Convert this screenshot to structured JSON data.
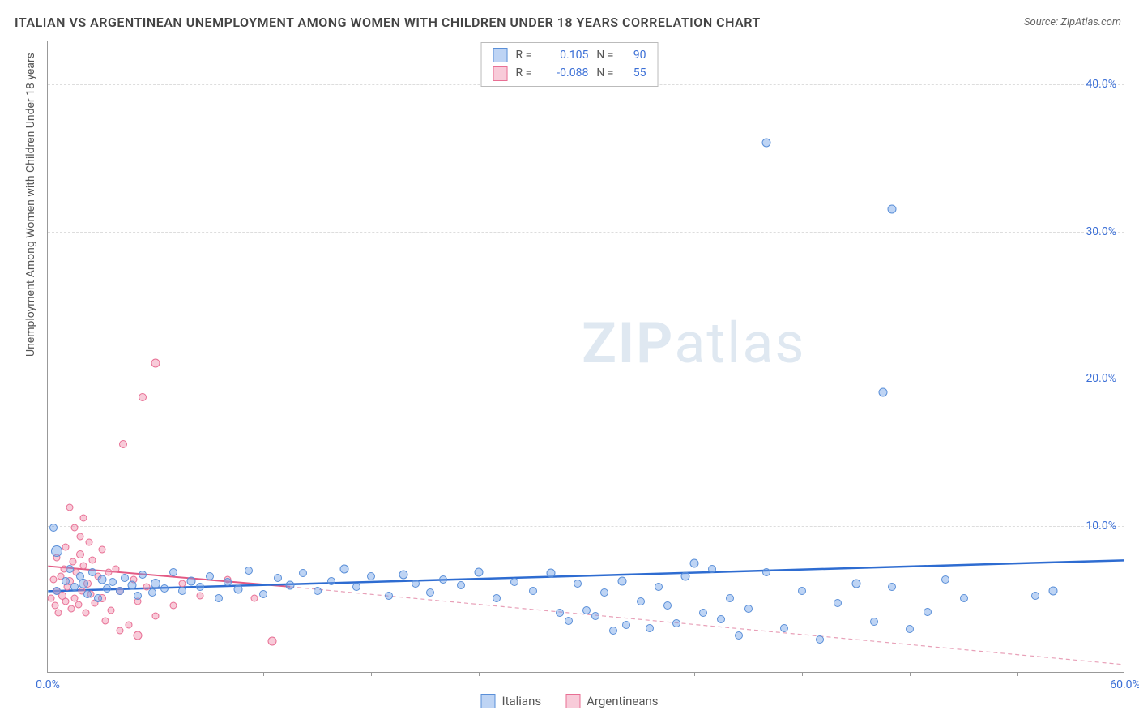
{
  "title": "ITALIAN VS ARGENTINEAN UNEMPLOYMENT AMONG WOMEN WITH CHILDREN UNDER 18 YEARS CORRELATION CHART",
  "source": "Source: ZipAtlas.com",
  "y_axis_label": "Unemployment Among Women with Children Under 18 years",
  "watermark_bold": "ZIP",
  "watermark_light": "atlas",
  "chart": {
    "type": "scatter",
    "xlim": [
      0,
      60
    ],
    "ylim": [
      0,
      43
    ],
    "x_ticks": [
      0,
      60
    ],
    "x_tick_labels": [
      "0.0%",
      "60.0%"
    ],
    "x_minor_ticks": [
      6,
      12,
      18,
      24,
      30,
      36,
      42,
      48,
      54
    ],
    "y_ticks": [
      10,
      20,
      30,
      40
    ],
    "y_tick_labels": [
      "10.0%",
      "20.0%",
      "30.0%",
      "40.0%"
    ],
    "grid_color": "#dddddd",
    "axis_color": "#999999",
    "background_color": "#ffffff"
  },
  "series": {
    "italians": {
      "label": "Italians",
      "fill": "rgba(110, 160, 230, 0.45)",
      "stroke": "#5a8fd8",
      "trend_color": "#2e6cd1",
      "trend_width": 2.5,
      "trend_dash": "none",
      "r_label": "R =",
      "r_value": "0.105",
      "n_label": "N =",
      "n_value": "90",
      "trend": {
        "x1": 0,
        "y1": 5.5,
        "x2": 60,
        "y2": 7.6
      },
      "points": [
        [
          0.3,
          9.8,
          10
        ],
        [
          0.5,
          8.2,
          14
        ],
        [
          0.5,
          5.5,
          10
        ],
        [
          1.0,
          6.2,
          10
        ],
        [
          1.2,
          7.0,
          10
        ],
        [
          1.5,
          5.8,
          10
        ],
        [
          1.8,
          6.5,
          10
        ],
        [
          2.0,
          6.0,
          12
        ],
        [
          2.2,
          5.3,
          10
        ],
        [
          2.5,
          6.8,
          10
        ],
        [
          2.8,
          5.0,
          10
        ],
        [
          3.0,
          6.3,
          11
        ],
        [
          3.3,
          5.7,
          10
        ],
        [
          3.6,
          6.1,
          10
        ],
        [
          4.0,
          5.5,
          10
        ],
        [
          4.3,
          6.4,
          10
        ],
        [
          4.7,
          5.9,
          11
        ],
        [
          5.0,
          5.2,
          10
        ],
        [
          5.3,
          6.6,
          10
        ],
        [
          5.8,
          5.4,
          10
        ],
        [
          6.0,
          6.0,
          12
        ],
        [
          6.5,
          5.7,
          10
        ],
        [
          7.0,
          6.8,
          10
        ],
        [
          7.5,
          5.5,
          10
        ],
        [
          8.0,
          6.2,
          11
        ],
        [
          8.5,
          5.8,
          10
        ],
        [
          9.0,
          6.5,
          10
        ],
        [
          9.5,
          5.0,
          10
        ],
        [
          10.0,
          6.1,
          10
        ],
        [
          10.6,
          5.6,
          11
        ],
        [
          11.2,
          6.9,
          10
        ],
        [
          12.0,
          5.3,
          10
        ],
        [
          12.8,
          6.4,
          10
        ],
        [
          13.5,
          5.9,
          11
        ],
        [
          14.2,
          6.7,
          10
        ],
        [
          15.0,
          5.5,
          10
        ],
        [
          15.8,
          6.2,
          10
        ],
        [
          16.5,
          7.0,
          11
        ],
        [
          17.2,
          5.8,
          10
        ],
        [
          18.0,
          6.5,
          10
        ],
        [
          19.0,
          5.2,
          10
        ],
        [
          19.8,
          6.6,
          11
        ],
        [
          20.5,
          6.0,
          10
        ],
        [
          21.3,
          5.4,
          10
        ],
        [
          22.0,
          6.3,
          10
        ],
        [
          23.0,
          5.9,
          10
        ],
        [
          24.0,
          6.8,
          11
        ],
        [
          25.0,
          5.0,
          10
        ],
        [
          26.0,
          6.1,
          10
        ],
        [
          27.0,
          5.5,
          10
        ],
        [
          28.0,
          6.7,
          11
        ],
        [
          28.5,
          4.0,
          10
        ],
        [
          29.0,
          3.5,
          10
        ],
        [
          29.5,
          6.0,
          10
        ],
        [
          30.0,
          4.2,
          10
        ],
        [
          30.5,
          3.8,
          10
        ],
        [
          31.0,
          5.4,
          10
        ],
        [
          31.5,
          2.8,
          10
        ],
        [
          32.0,
          6.2,
          11
        ],
        [
          32.2,
          3.2,
          10
        ],
        [
          33.0,
          4.8,
          10
        ],
        [
          33.5,
          3.0,
          10
        ],
        [
          34.0,
          5.8,
          10
        ],
        [
          34.5,
          4.5,
          10
        ],
        [
          35.0,
          3.3,
          10
        ],
        [
          35.5,
          6.5,
          11
        ],
        [
          36.0,
          7.4,
          11
        ],
        [
          36.5,
          4.0,
          10
        ],
        [
          37.0,
          7.0,
          10
        ],
        [
          37.5,
          3.6,
          10
        ],
        [
          38.0,
          5.0,
          10
        ],
        [
          38.5,
          2.5,
          10
        ],
        [
          39.0,
          4.3,
          10
        ],
        [
          40.0,
          6.8,
          10
        ],
        [
          40.0,
          36.0,
          11
        ],
        [
          41.0,
          3.0,
          10
        ],
        [
          42.0,
          5.5,
          10
        ],
        [
          43.0,
          2.2,
          10
        ],
        [
          44.0,
          4.7,
          10
        ],
        [
          45.0,
          6.0,
          11
        ],
        [
          46.0,
          3.4,
          10
        ],
        [
          46.5,
          19.0,
          11
        ],
        [
          47.0,
          5.8,
          10
        ],
        [
          47.0,
          31.5,
          11
        ],
        [
          48.0,
          2.9,
          10
        ],
        [
          49.0,
          4.1,
          10
        ],
        [
          50.0,
          6.3,
          10
        ],
        [
          51.0,
          5.0,
          10
        ],
        [
          55.0,
          5.2,
          10
        ],
        [
          56.0,
          5.5,
          11
        ]
      ]
    },
    "argentineans": {
      "label": "Argentineans",
      "fill": "rgba(240, 140, 170, 0.45)",
      "stroke": "#e86f94",
      "trend_color": "#e35a84",
      "trend_solid_width": 2,
      "trend_dash_color": "#e8a0b8",
      "trend_dash": "5,4",
      "r_label": "R =",
      "r_value": "-0.088",
      "n_label": "N =",
      "n_value": "55",
      "trend_solid": {
        "x1": 0,
        "y1": 7.2,
        "x2": 13.5,
        "y2": 5.8
      },
      "trend_dashed": {
        "x1": 13.5,
        "y1": 5.8,
        "x2": 60,
        "y2": 0.5
      },
      "points": [
        [
          0.2,
          5.0,
          9
        ],
        [
          0.3,
          6.3,
          9
        ],
        [
          0.4,
          4.5,
          9
        ],
        [
          0.5,
          7.8,
          9
        ],
        [
          0.5,
          5.5,
          9
        ],
        [
          0.6,
          4.0,
          9
        ],
        [
          0.7,
          6.5,
          9
        ],
        [
          0.8,
          5.2,
          10
        ],
        [
          0.9,
          7.0,
          9
        ],
        [
          1.0,
          4.8,
          9
        ],
        [
          1.0,
          8.5,
          9
        ],
        [
          1.1,
          5.8,
          9
        ],
        [
          1.2,
          6.2,
          10
        ],
        [
          1.2,
          11.2,
          9
        ],
        [
          1.3,
          4.3,
          9
        ],
        [
          1.4,
          7.5,
          9
        ],
        [
          1.5,
          5.0,
          9
        ],
        [
          1.5,
          9.8,
          9
        ],
        [
          1.6,
          6.8,
          9
        ],
        [
          1.7,
          4.6,
          9
        ],
        [
          1.8,
          8.0,
          10
        ],
        [
          1.8,
          9.2,
          9
        ],
        [
          1.9,
          5.5,
          9
        ],
        [
          2.0,
          7.2,
          9
        ],
        [
          2.0,
          10.5,
          9
        ],
        [
          2.1,
          4.0,
          9
        ],
        [
          2.2,
          6.0,
          10
        ],
        [
          2.3,
          8.8,
          9
        ],
        [
          2.4,
          5.3,
          9
        ],
        [
          2.5,
          7.6,
          9
        ],
        [
          2.6,
          4.7,
          9
        ],
        [
          2.8,
          6.5,
          9
        ],
        [
          3.0,
          5.0,
          10
        ],
        [
          3.0,
          8.3,
          9
        ],
        [
          3.2,
          3.5,
          9
        ],
        [
          3.4,
          6.8,
          9
        ],
        [
          3.5,
          4.2,
          9
        ],
        [
          3.8,
          7.0,
          9
        ],
        [
          4.0,
          5.5,
          10
        ],
        [
          4.0,
          2.8,
          9
        ],
        [
          4.2,
          15.5,
          10
        ],
        [
          4.5,
          3.2,
          9
        ],
        [
          4.8,
          6.3,
          9
        ],
        [
          5.0,
          2.5,
          11
        ],
        [
          5.0,
          4.8,
          9
        ],
        [
          5.3,
          18.7,
          10
        ],
        [
          5.5,
          5.8,
          9
        ],
        [
          6.0,
          3.8,
          9
        ],
        [
          6.0,
          21.0,
          11
        ],
        [
          7.0,
          4.5,
          9
        ],
        [
          7.5,
          6.0,
          9
        ],
        [
          8.5,
          5.2,
          9
        ],
        [
          10.0,
          6.3,
          9
        ],
        [
          11.5,
          5.0,
          9
        ],
        [
          12.5,
          2.1,
          11
        ]
      ]
    }
  },
  "legend_bottom": {
    "italians": "Italians",
    "argentineans": "Argentineans"
  }
}
